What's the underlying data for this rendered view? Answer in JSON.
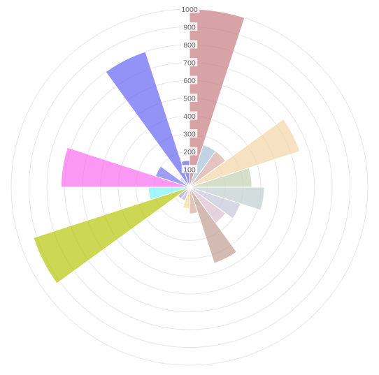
{
  "chart_data": {
    "type": "polar-area",
    "title": "",
    "r_ticks": [
      100,
      200,
      300,
      400,
      500,
      600,
      700,
      800,
      900,
      1000
    ],
    "r_max": 1000,
    "grid": true,
    "legend": "none",
    "sectors": [
      {
        "value": 1000,
        "color": "#c97f84"
      },
      {
        "value": 250,
        "color": "#a9c4d8"
      },
      {
        "value": 250,
        "color": "#d9b0a8"
      },
      {
        "value": 650,
        "color": "#f2d6a8"
      },
      {
        "value": 350,
        "color": "#c3d1b4"
      },
      {
        "value": 420,
        "color": "#c3d0d0"
      },
      {
        "value": 300,
        "color": "#c8c8d8"
      },
      {
        "value": 250,
        "color": "#dcc0d0"
      },
      {
        "value": 450,
        "color": "#c2a094"
      },
      {
        "value": 150,
        "color": "#d8b0a0"
      },
      {
        "value": 120,
        "color": "#f8dc98"
      },
      {
        "value": 80,
        "color": "#c8b0d0"
      },
      {
        "value": 80,
        "color": "#a0a0e8"
      },
      {
        "value": 920,
        "color": "#b8c810"
      },
      {
        "value": 230,
        "color": "#80f4f8"
      },
      {
        "value": 720,
        "color": "#f870f0"
      },
      {
        "value": 200,
        "color": "#7878f0"
      },
      {
        "value": 70,
        "color": "#c8d0e8"
      },
      {
        "value": 800,
        "color": "#6a6af4"
      },
      {
        "value": 150,
        "color": "#6a6ae8"
      }
    ]
  }
}
